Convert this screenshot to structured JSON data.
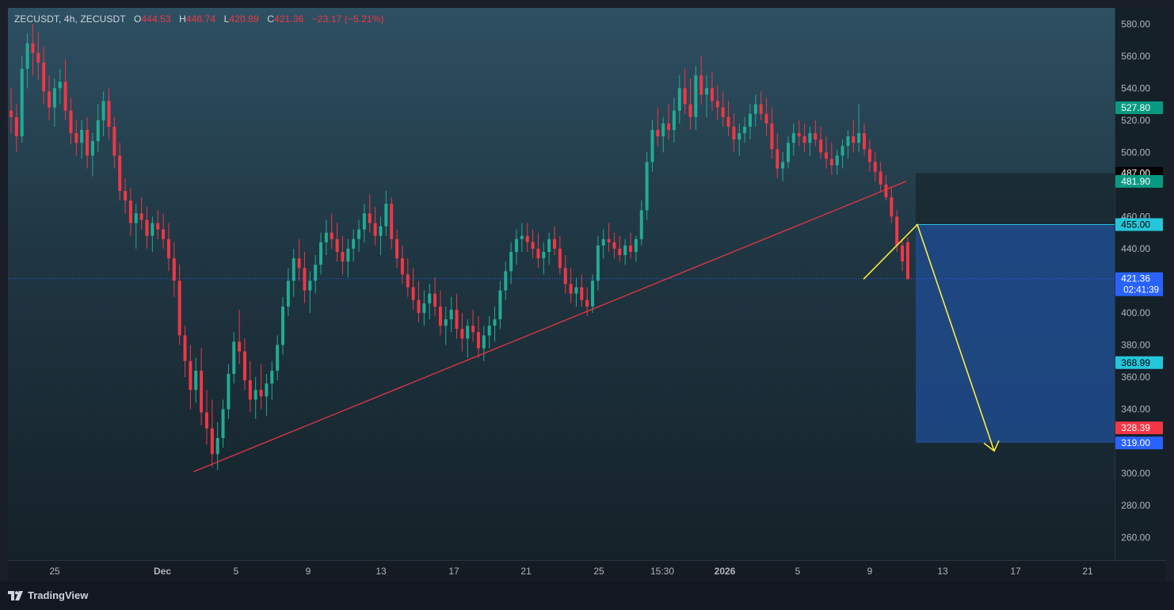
{
  "legend": {
    "symbol": "ZECUSDT",
    "interval": "4h",
    "exchange_symbol": "ZECUSDT",
    "open_label": "O",
    "open": "444.53",
    "high_label": "H",
    "high": "446.74",
    "low_label": "L",
    "low": "420.89",
    "close_label": "C",
    "close": "421.36",
    "change": "−23.17 (−5.21%)"
  },
  "branding": {
    "logo_text": "TradingView"
  },
  "colors": {
    "up": "#22ab94",
    "down": "#f23645",
    "trendline": "#f23645",
    "projection": "#ffeb3b",
    "target_zone": "#1e4a8c",
    "stop_zone": "#1a2a33",
    "entry_line": "#26c6da",
    "last_price": "#2962ff"
  },
  "chart_data": {
    "type": "candlestick",
    "symbol": "ZECUSDT",
    "interval": "4h",
    "ylim": [
      246,
      590
    ],
    "y_ticks": [
      "580.00",
      "560.00",
      "540.00",
      "520.00",
      "500.00",
      "460.00",
      "440.00",
      "400.00",
      "380.00",
      "360.00",
      "340.00",
      "300.00",
      "280.00",
      "260.00"
    ],
    "x_ticks": [
      "25",
      "Dec",
      "5",
      "9",
      "13",
      "17",
      "21",
      "25",
      "15:30",
      "2026",
      "5",
      "9",
      "13",
      "17",
      "21"
    ],
    "price_labels": [
      {
        "text": "527.80",
        "value": 527.8,
        "bg": "#089981",
        "color": "#ffffff"
      },
      {
        "text": "487.00",
        "value": 487.0,
        "bg": "#000000",
        "color": "#ffffff"
      },
      {
        "text": "481.90",
        "value": 481.9,
        "bg": "#089981",
        "color": "#ffffff"
      },
      {
        "text": "455.00",
        "value": 455.0,
        "bg": "#26c6da",
        "color": "#000000"
      },
      {
        "text": "421.36",
        "value": 421.36,
        "bg": "#2962ff",
        "color": "#ffffff",
        "sub": "02:41:39"
      },
      {
        "text": "368.99",
        "value": 368.99,
        "bg": "#26c6da",
        "color": "#000000"
      },
      {
        "text": "328.39",
        "value": 328.39,
        "bg": "#f23645",
        "color": "#ffffff"
      },
      {
        "text": "319.00",
        "value": 319.0,
        "bg": "#2962ff",
        "color": "#ffffff"
      }
    ],
    "last_price": 421.36,
    "countdown": "02:41:39",
    "trendline": {
      "from": {
        "bar": 0,
        "price": 301
      },
      "to": {
        "bar": 202,
        "price": 482
      }
    },
    "position": {
      "entry": 455.0,
      "stop": 487.0,
      "target": 319.0,
      "target2": 328.39,
      "level": 368.99
    },
    "projection_path": [
      {
        "bar": 174,
        "price": 421
      },
      {
        "bar": 188,
        "price": 455
      },
      {
        "bar": 213,
        "price": 314
      }
    ],
    "candles": [
      [
        526,
        540,
        512,
        522
      ],
      [
        522,
        530,
        500,
        510
      ],
      [
        510,
        560,
        506,
        552
      ],
      [
        552,
        574,
        540,
        568
      ],
      [
        568,
        580,
        548,
        562
      ],
      [
        562,
        575,
        545,
        556
      ],
      [
        556,
        566,
        530,
        538
      ],
      [
        538,
        548,
        520,
        528
      ],
      [
        528,
        546,
        516,
        540
      ],
      [
        540,
        552,
        530,
        544
      ],
      [
        544,
        558,
        520,
        526
      ],
      [
        526,
        534,
        505,
        512
      ],
      [
        512,
        520,
        498,
        506
      ],
      [
        506,
        520,
        496,
        514
      ],
      [
        514,
        522,
        490,
        498
      ],
      [
        498,
        512,
        485,
        507
      ],
      [
        507,
        530,
        500,
        520
      ],
      [
        520,
        538,
        510,
        532
      ],
      [
        532,
        540,
        508,
        516
      ],
      [
        516,
        522,
        490,
        498
      ],
      [
        498,
        506,
        470,
        476
      ],
      [
        476,
        484,
        462,
        470
      ],
      [
        470,
        478,
        448,
        456
      ],
      [
        456,
        468,
        440,
        462
      ],
      [
        462,
        472,
        452,
        458
      ],
      [
        458,
        466,
        440,
        448
      ],
      [
        448,
        460,
        438,
        456
      ],
      [
        456,
        464,
        446,
        452
      ],
      [
        452,
        462,
        440,
        446
      ],
      [
        446,
        456,
        426,
        434
      ],
      [
        434,
        444,
        410,
        420
      ],
      [
        420,
        430,
        380,
        386
      ],
      [
        386,
        392,
        360,
        370
      ],
      [
        370,
        380,
        340,
        352
      ],
      [
        352,
        372,
        344,
        364
      ],
      [
        364,
        378,
        330,
        338
      ],
      [
        338,
        352,
        318,
        328
      ],
      [
        328,
        346,
        304,
        312
      ],
      [
        312,
        332,
        302,
        322
      ],
      [
        322,
        346,
        316,
        340
      ],
      [
        340,
        368,
        334,
        362
      ],
      [
        362,
        388,
        356,
        382
      ],
      [
        382,
        402,
        368,
        376
      ],
      [
        376,
        384,
        352,
        358
      ],
      [
        358,
        370,
        338,
        346
      ],
      [
        346,
        360,
        334,
        352
      ],
      [
        352,
        368,
        340,
        348
      ],
      [
        348,
        362,
        336,
        356
      ],
      [
        356,
        370,
        346,
        364
      ],
      [
        364,
        386,
        358,
        380
      ],
      [
        380,
        410,
        374,
        404
      ],
      [
        404,
        428,
        398,
        420
      ],
      [
        420,
        440,
        410,
        434
      ],
      [
        434,
        446,
        420,
        428
      ],
      [
        428,
        438,
        406,
        414
      ],
      [
        414,
        426,
        400,
        420
      ],
      [
        420,
        436,
        412,
        430
      ],
      [
        430,
        450,
        424,
        444
      ],
      [
        444,
        458,
        436,
        450
      ],
      [
        450,
        462,
        440,
        446
      ],
      [
        446,
        456,
        432,
        438
      ],
      [
        438,
        448,
        424,
        432
      ],
      [
        432,
        446,
        422,
        440
      ],
      [
        440,
        452,
        432,
        446
      ],
      [
        446,
        458,
        438,
        452
      ],
      [
        452,
        468,
        444,
        462
      ],
      [
        462,
        474,
        450,
        456
      ],
      [
        456,
        466,
        442,
        448
      ],
      [
        448,
        460,
        436,
        454
      ],
      [
        454,
        476,
        448,
        468
      ],
      [
        468,
        472,
        440,
        446
      ],
      [
        446,
        452,
        428,
        434
      ],
      [
        434,
        442,
        418,
        424
      ],
      [
        424,
        434,
        410,
        416
      ],
      [
        416,
        428,
        402,
        408
      ],
      [
        408,
        420,
        394,
        400
      ],
      [
        400,
        414,
        392,
        406
      ],
      [
        406,
        418,
        396,
        412
      ],
      [
        412,
        422,
        398,
        404
      ],
      [
        404,
        414,
        386,
        392
      ],
      [
        392,
        404,
        380,
        396
      ],
      [
        396,
        410,
        388,
        402
      ],
      [
        402,
        412,
        384,
        390
      ],
      [
        390,
        400,
        376,
        384
      ],
      [
        384,
        396,
        372,
        392
      ],
      [
        392,
        402,
        382,
        388
      ],
      [
        388,
        398,
        372,
        378
      ],
      [
        378,
        392,
        370,
        386
      ],
      [
        386,
        398,
        378,
        392
      ],
      [
        392,
        404,
        382,
        396
      ],
      [
        396,
        420,
        390,
        414
      ],
      [
        414,
        432,
        408,
        426
      ],
      [
        426,
        444,
        418,
        438
      ],
      [
        438,
        452,
        430,
        446
      ],
      [
        446,
        456,
        438,
        448
      ],
      [
        448,
        456,
        438,
        444
      ],
      [
        444,
        452,
        434,
        440
      ],
      [
        440,
        450,
        428,
        434
      ],
      [
        434,
        444,
        424,
        438
      ],
      [
        438,
        450,
        430,
        446
      ],
      [
        446,
        454,
        436,
        440
      ],
      [
        440,
        448,
        424,
        428
      ],
      [
        428,
        436,
        412,
        418
      ],
      [
        418,
        428,
        406,
        412
      ],
      [
        412,
        422,
        404,
        416
      ],
      [
        416,
        424,
        404,
        408
      ],
      [
        408,
        416,
        398,
        404
      ],
      [
        404,
        424,
        400,
        420
      ],
      [
        420,
        448,
        414,
        442
      ],
      [
        442,
        452,
        434,
        446
      ],
      [
        446,
        456,
        438,
        444
      ],
      [
        444,
        450,
        434,
        440
      ],
      [
        440,
        448,
        432,
        436
      ],
      [
        436,
        446,
        430,
        442
      ],
      [
        442,
        450,
        434,
        438
      ],
      [
        438,
        448,
        432,
        446
      ],
      [
        446,
        470,
        442,
        464
      ],
      [
        464,
        500,
        458,
        494
      ],
      [
        494,
        520,
        488,
        514
      ],
      [
        514,
        528,
        504,
        510
      ],
      [
        510,
        522,
        500,
        518
      ],
      [
        518,
        530,
        508,
        514
      ],
      [
        514,
        534,
        506,
        526
      ],
      [
        526,
        548,
        518,
        540
      ],
      [
        540,
        552,
        524,
        530
      ],
      [
        530,
        546,
        514,
        522
      ],
      [
        522,
        554,
        514,
        548
      ],
      [
        548,
        560,
        530,
        536
      ],
      [
        536,
        548,
        522,
        540
      ],
      [
        540,
        550,
        526,
        532
      ],
      [
        532,
        542,
        520,
        528
      ],
      [
        528,
        538,
        516,
        522
      ],
      [
        522,
        532,
        510,
        516
      ],
      [
        516,
        524,
        500,
        508
      ],
      [
        508,
        518,
        498,
        512
      ],
      [
        512,
        522,
        506,
        516
      ],
      [
        516,
        530,
        508,
        524
      ],
      [
        524,
        536,
        516,
        530
      ],
      [
        530,
        538,
        520,
        524
      ],
      [
        524,
        534,
        510,
        518
      ],
      [
        518,
        528,
        496,
        502
      ],
      [
        502,
        512,
        484,
        490
      ],
      [
        490,
        500,
        482,
        494
      ],
      [
        494,
        510,
        490,
        506
      ],
      [
        506,
        518,
        498,
        512
      ],
      [
        512,
        520,
        504,
        510
      ],
      [
        510,
        518,
        500,
        506
      ],
      [
        506,
        516,
        498,
        512
      ],
      [
        512,
        520,
        504,
        508
      ],
      [
        508,
        516,
        496,
        500
      ],
      [
        500,
        510,
        490,
        496
      ],
      [
        496,
        506,
        486,
        492
      ],
      [
        492,
        502,
        486,
        498
      ],
      [
        498,
        508,
        490,
        504
      ],
      [
        504,
        514,
        496,
        510
      ],
      [
        510,
        520,
        500,
        506
      ],
      [
        506,
        530,
        500,
        512
      ],
      [
        512,
        518,
        498,
        502
      ],
      [
        502,
        508,
        488,
        494
      ],
      [
        494,
        500,
        482,
        488
      ],
      [
        488,
        494,
        476,
        480
      ],
      [
        480,
        486,
        470,
        472
      ],
      [
        472,
        478,
        456,
        460
      ],
      [
        460,
        464,
        438,
        442
      ],
      [
        442,
        446,
        426,
        432
      ],
      [
        444,
        447,
        421,
        421
      ]
    ]
  }
}
